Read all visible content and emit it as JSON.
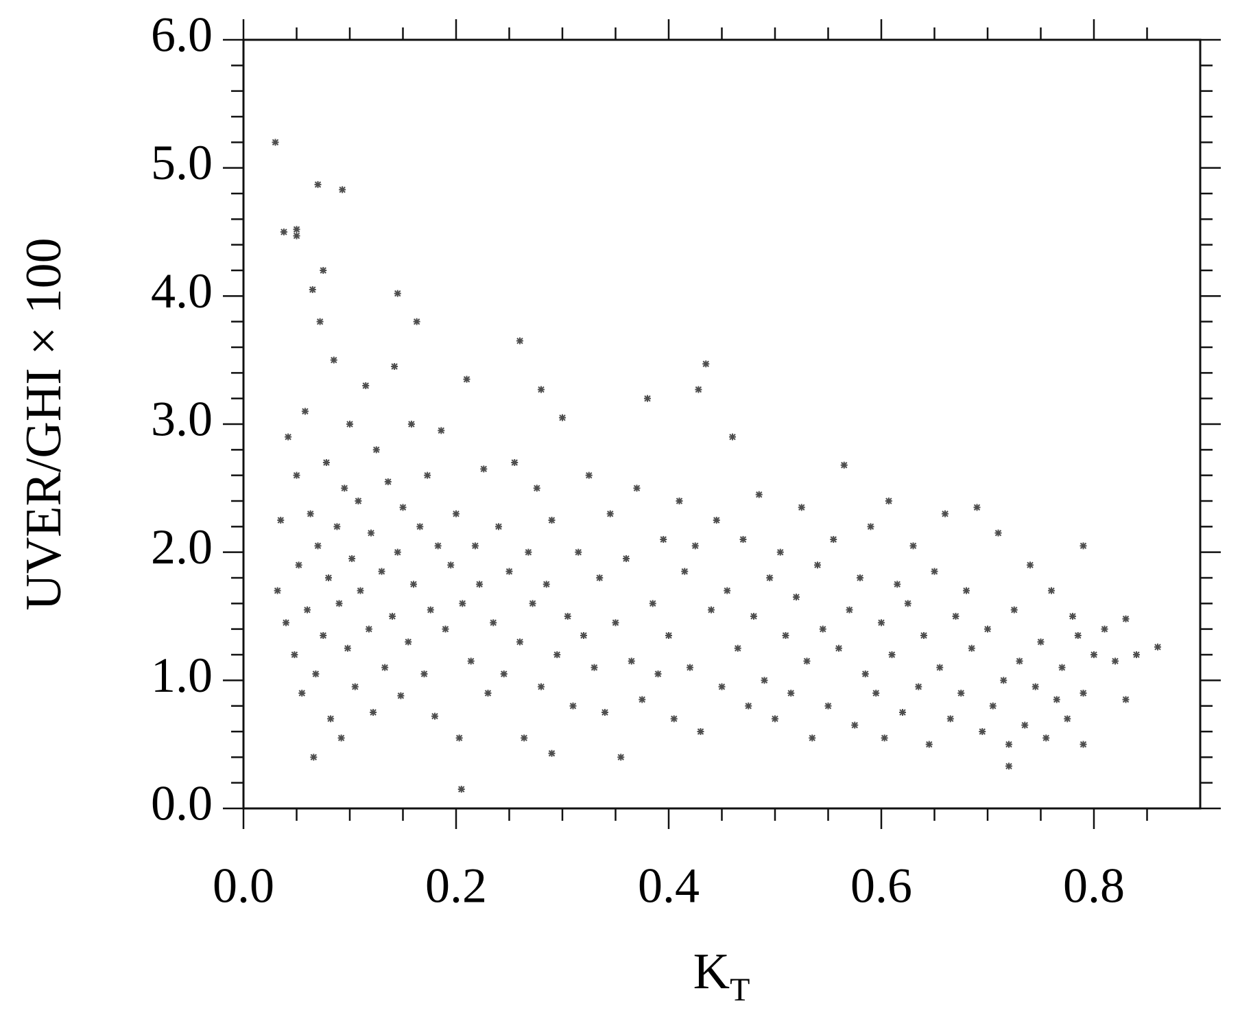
{
  "chart_data": {
    "type": "scatter",
    "x_label": "K",
    "x_label_sub": "T",
    "y_label": "UVER/GHI × 100",
    "xlim": [
      0,
      0.9
    ],
    "ylim": [
      0,
      6
    ],
    "xticks": [
      {
        "value": 0,
        "label": "0.0"
      },
      0.2,
      0.4,
      0.6,
      0.8
    ],
    "yticks": [
      {
        "value": 0,
        "label": "0.0"
      },
      {
        "value": 1,
        "label": "1.0"
      },
      {
        "value": 2,
        "label": "2.0"
      },
      {
        "value": 3,
        "label": "3.0"
      },
      {
        "value": 4,
        "label": "4.0"
      },
      {
        "value": 5,
        "label": "5.0"
      },
      {
        "value": 6,
        "label": "6.0"
      }
    ],
    "xminorticks": [
      0.05,
      0.1,
      0.15,
      0.25,
      0.3,
      0.35,
      0.45,
      0.5,
      0.55,
      0.65,
      0.7,
      0.75,
      0.85
    ],
    "yminorticks": [
      0.2,
      0.4,
      0.6,
      0.8,
      1.2,
      1.4,
      1.6,
      1.8,
      2.2,
      2.4,
      2.6,
      2.8,
      3.2,
      3.4,
      3.6,
      3.8,
      4.2,
      4.4,
      4.6,
      4.8,
      5.2,
      5.4,
      5.6,
      5.8
    ],
    "color": "#4d4d4d",
    "x": [
      0.03,
      0.07,
      0.093,
      0.038,
      0.05,
      0.05,
      0.065,
      0.075,
      0.145,
      0.26,
      0.435,
      0.428,
      0.28,
      0.205,
      0.066,
      0.86,
      0.83,
      0.29,
      0.79,
      0.72,
      0.032,
      0.035,
      0.04,
      0.042,
      0.048,
      0.05,
      0.052,
      0.055,
      0.058,
      0.06,
      0.063,
      0.068,
      0.07,
      0.072,
      0.075,
      0.078,
      0.08,
      0.082,
      0.085,
      0.088,
      0.09,
      0.092,
      0.095,
      0.098,
      0.1,
      0.102,
      0.105,
      0.108,
      0.11,
      0.115,
      0.118,
      0.12,
      0.122,
      0.125,
      0.13,
      0.133,
      0.136,
      0.14,
      0.142,
      0.145,
      0.148,
      0.15,
      0.155,
      0.158,
      0.16,
      0.163,
      0.166,
      0.17,
      0.173,
      0.176,
      0.18,
      0.183,
      0.186,
      0.19,
      0.195,
      0.2,
      0.203,
      0.206,
      0.21,
      0.214,
      0.218,
      0.222,
      0.226,
      0.23,
      0.235,
      0.24,
      0.245,
      0.25,
      0.255,
      0.26,
      0.264,
      0.268,
      0.272,
      0.276,
      0.28,
      0.285,
      0.29,
      0.295,
      0.3,
      0.305,
      0.31,
      0.315,
      0.32,
      0.325,
      0.33,
      0.335,
      0.34,
      0.345,
      0.35,
      0.355,
      0.36,
      0.365,
      0.37,
      0.375,
      0.38,
      0.385,
      0.39,
      0.395,
      0.4,
      0.405,
      0.41,
      0.415,
      0.42,
      0.425,
      0.43,
      0.44,
      0.445,
      0.45,
      0.455,
      0.46,
      0.465,
      0.47,
      0.475,
      0.48,
      0.485,
      0.49,
      0.495,
      0.5,
      0.505,
      0.51,
      0.515,
      0.52,
      0.525,
      0.53,
      0.535,
      0.54,
      0.545,
      0.55,
      0.555,
      0.56,
      0.565,
      0.57,
      0.575,
      0.58,
      0.585,
      0.59,
      0.595,
      0.6,
      0.603,
      0.607,
      0.61,
      0.615,
      0.62,
      0.625,
      0.63,
      0.635,
      0.64,
      0.645,
      0.65,
      0.655,
      0.66,
      0.665,
      0.67,
      0.675,
      0.68,
      0.685,
      0.69,
      0.695,
      0.7,
      0.705,
      0.71,
      0.715,
      0.72,
      0.725,
      0.73,
      0.735,
      0.74,
      0.745,
      0.75,
      0.755,
      0.76,
      0.765,
      0.77,
      0.775,
      0.78,
      0.785,
      0.79,
      0.8,
      0.81,
      0.82,
      0.84,
      0.83,
      0.79
    ],
    "values": [
      5.2,
      4.87,
      4.83,
      4.5,
      4.52,
      4.47,
      4.05,
      4.2,
      4.02,
      3.65,
      3.47,
      3.27,
      3.27,
      0.15,
      0.4,
      1.26,
      1.48,
      0.43,
      2.05,
      0.33,
      1.7,
      2.25,
      1.45,
      2.9,
      1.2,
      2.6,
      1.9,
      0.9,
      3.1,
      1.55,
      2.3,
      1.05,
      2.05,
      3.8,
      1.35,
      2.7,
      1.8,
      0.7,
      3.5,
      2.2,
      1.6,
      0.55,
      2.5,
      1.25,
      3.0,
      1.95,
      0.95,
      2.4,
      1.7,
      3.3,
      1.4,
      2.15,
      0.75,
      2.8,
      1.85,
      1.1,
      2.55,
      1.5,
      3.45,
      2.0,
      0.88,
      2.35,
      1.3,
      3.0,
      1.75,
      3.8,
      2.2,
      1.05,
      2.6,
      1.55,
      0.72,
      2.05,
      2.95,
      1.4,
      1.9,
      2.3,
      0.55,
      1.6,
      3.35,
      1.15,
      2.05,
      1.75,
      2.65,
      0.9,
      1.45,
      2.2,
      1.05,
      1.85,
      2.7,
      1.3,
      0.55,
      2.0,
      1.6,
      2.5,
      0.95,
      1.75,
      2.25,
      1.2,
      3.05,
      1.5,
      0.8,
      2.0,
      1.35,
      2.6,
      1.1,
      1.8,
      0.75,
      2.3,
      1.45,
      0.4,
      1.95,
      1.15,
      2.5,
      0.85,
      3.2,
      1.6,
      1.05,
      2.1,
      1.35,
      0.7,
      2.4,
      1.85,
      1.1,
      2.05,
      0.6,
      1.55,
      2.25,
      0.95,
      1.7,
      2.9,
      1.25,
      2.1,
      0.8,
      1.5,
      2.45,
      1.0,
      1.8,
      0.7,
      2.0,
      1.35,
      0.9,
      1.65,
      2.35,
      1.15,
      0.55,
      1.9,
      1.4,
      0.8,
      2.1,
      1.25,
      2.68,
      1.55,
      0.65,
      1.8,
      1.05,
      2.2,
      0.9,
      1.45,
      0.55,
      2.4,
      1.2,
      1.75,
      0.75,
      1.6,
      2.05,
      0.95,
      1.35,
      0.5,
      1.85,
      1.1,
      2.3,
      0.7,
      1.5,
      0.9,
      1.7,
      1.25,
      2.35,
      0.6,
      1.4,
      0.8,
      2.15,
      1.0,
      0.5,
      1.55,
      1.15,
      0.65,
      1.9,
      0.95,
      1.3,
      0.55,
      1.7,
      0.85,
      1.1,
      0.7,
      1.5,
      1.35,
      0.9,
      1.2,
      1.4,
      1.15,
      1.2,
      0.85,
      0.5
    ]
  }
}
